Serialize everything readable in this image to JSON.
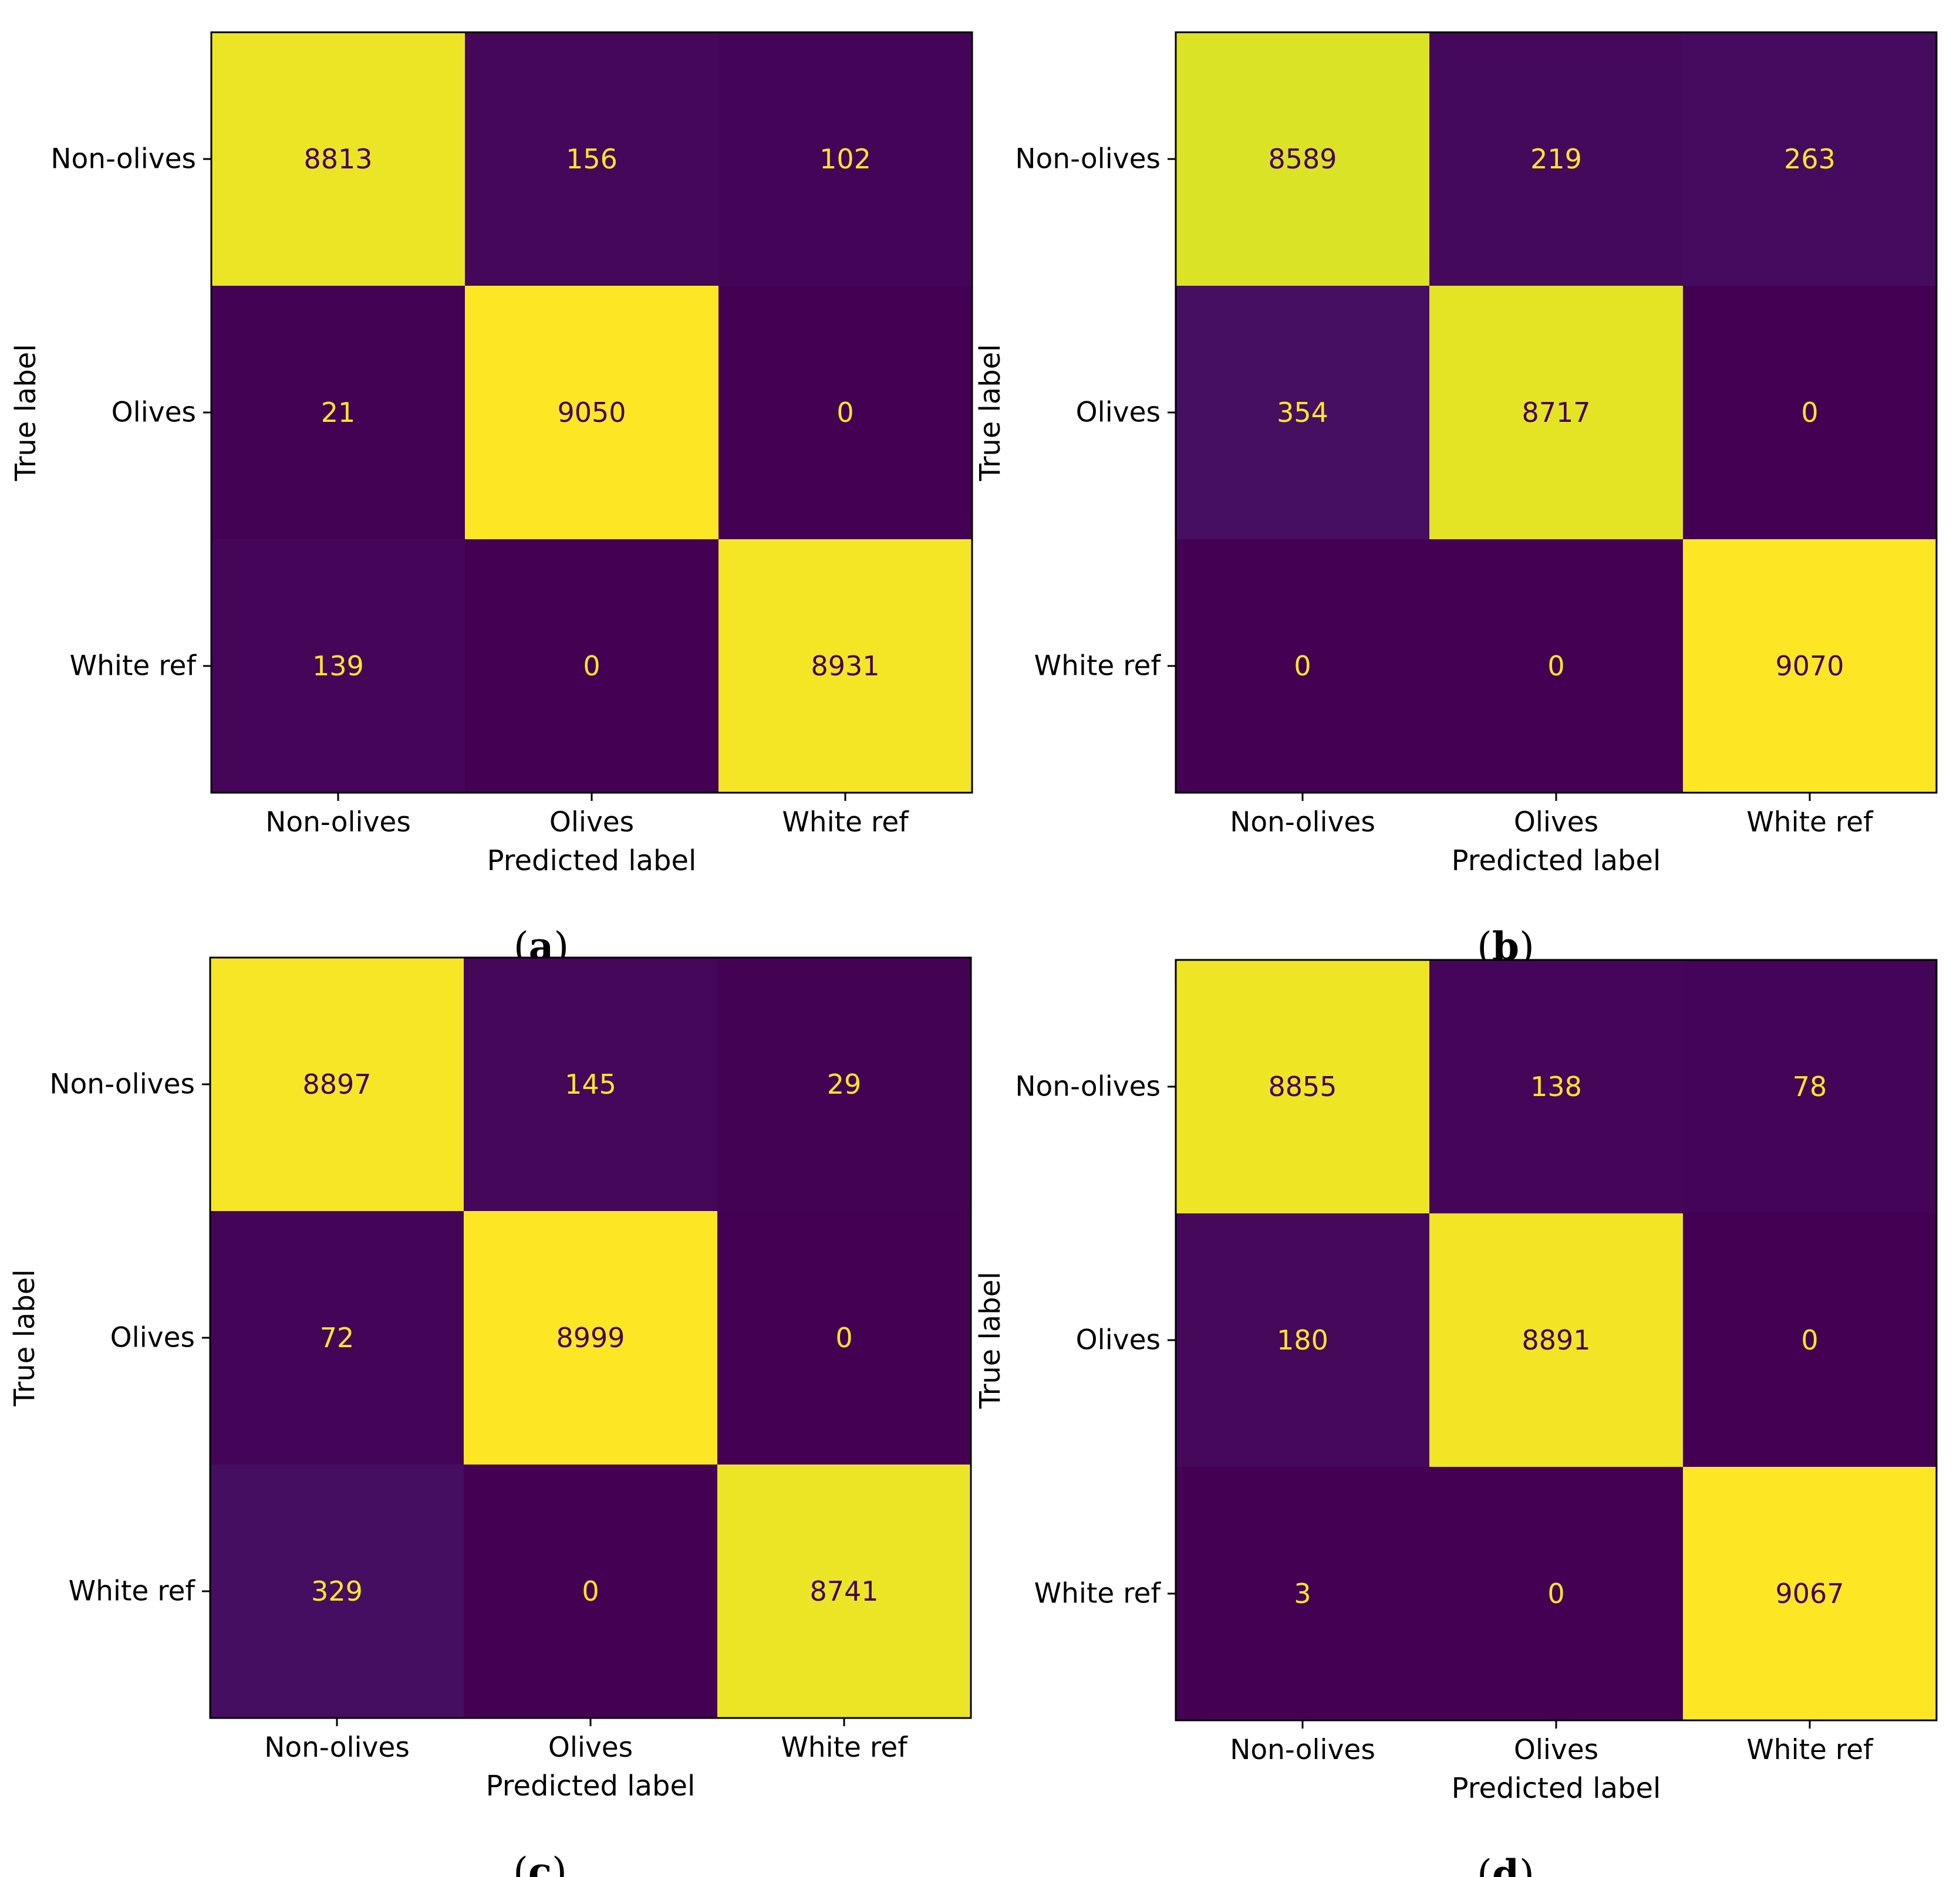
{
  "chart_data": [
    {
      "type": "heatmap",
      "panel": "a",
      "row_categories": [
        "Non-olives",
        "Olives",
        "White ref"
      ],
      "col_categories": [
        "Non-olives",
        "Olives",
        "White ref"
      ],
      "values": [
        [
          8813,
          156,
          102
        ],
        [
          21,
          9050,
          0
        ],
        [
          139,
          0,
          8931
        ]
      ],
      "xlabel": "Predicted label",
      "ylabel": "True label",
      "colormap": "viridis",
      "color_range": [
        0,
        9050
      ]
    },
    {
      "type": "heatmap",
      "panel": "b",
      "row_categories": [
        "Non-olives",
        "Olives",
        "White ref"
      ],
      "col_categories": [
        "Non-olives",
        "Olives",
        "White ref"
      ],
      "values": [
        [
          8589,
          219,
          263
        ],
        [
          354,
          8717,
          0
        ],
        [
          0,
          0,
          9070
        ]
      ],
      "xlabel": "Predicted label",
      "ylabel": "True label",
      "colormap": "viridis",
      "color_range": [
        0,
        9070
      ]
    },
    {
      "type": "heatmap",
      "panel": "c",
      "row_categories": [
        "Non-olives",
        "Olives",
        "White ref"
      ],
      "col_categories": [
        "Non-olives",
        "Olives",
        "White ref"
      ],
      "values": [
        [
          8897,
          145,
          29
        ],
        [
          72,
          8999,
          0
        ],
        [
          329,
          0,
          8741
        ]
      ],
      "xlabel": "Predicted label",
      "ylabel": "True label",
      "colormap": "viridis",
      "color_range": [
        0,
        8999
      ]
    },
    {
      "type": "heatmap",
      "panel": "d",
      "row_categories": [
        "Non-olives",
        "Olives",
        "White ref"
      ],
      "col_categories": [
        "Non-olives",
        "Olives",
        "White ref"
      ],
      "values": [
        [
          8855,
          138,
          78
        ],
        [
          180,
          8891,
          0
        ],
        [
          3,
          0,
          9067
        ]
      ],
      "xlabel": "Predicted label",
      "ylabel": "True label",
      "colormap": "viridis",
      "color_range": [
        0,
        9067
      ]
    }
  ],
  "colors": {
    "low": "#440154",
    "high": "#fde725",
    "text_on_dark": "#fde725",
    "text_on_light": "#440154"
  }
}
